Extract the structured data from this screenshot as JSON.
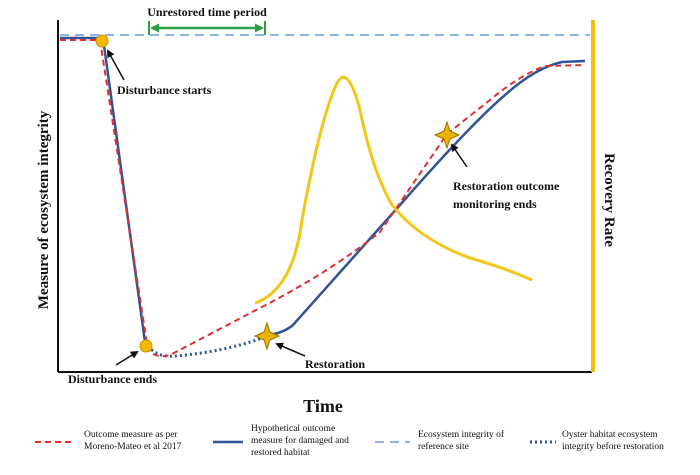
{
  "labels": {
    "unrestored_period": "Unrestored time period",
    "disturbance_starts": "Disturbance starts",
    "disturbance_ends": "Disturbance ends",
    "restoration": "Restoration",
    "monitoring_line1": "Restoration outcome",
    "monitoring_line2": "monitoring ends"
  },
  "axes": {
    "x_label": "Time",
    "y_label": "Measure of ecosystem integrity",
    "y2_label": "Recovery Rate"
  },
  "legend": [
    {
      "key": "moreno",
      "lines": [
        "Outcome measure as per",
        "Moreno-Mateo et al 2017"
      ],
      "color": "#e03030",
      "style": "dashed"
    },
    {
      "key": "hypothetical",
      "lines": [
        "Hypothetical outcome",
        "measure for damaged and",
        "restored habitat"
      ],
      "color": "#2f5597",
      "style": "solid"
    },
    {
      "key": "reference",
      "lines": [
        "Ecosystem integrity of",
        "reference site"
      ],
      "color": "#8fb4e3",
      "style": "dashed"
    },
    {
      "key": "oyster",
      "lines": [
        "Oyster habitat ecosystem",
        "integrity  before restoration"
      ],
      "color": "#2f5597",
      "style": "dotted"
    }
  ],
  "colors": {
    "axis": "#111111",
    "recovery_axis": "#f2c200",
    "recovery_curve": "#f5c518",
    "arrow_green": "#2ea043",
    "marker_fill": "#f5b800",
    "star_fill": "#e8b400",
    "annotation_arrow": "#111111"
  },
  "icons": {
    "disturbance_markers": "circle",
    "restoration_markers": "star"
  }
}
